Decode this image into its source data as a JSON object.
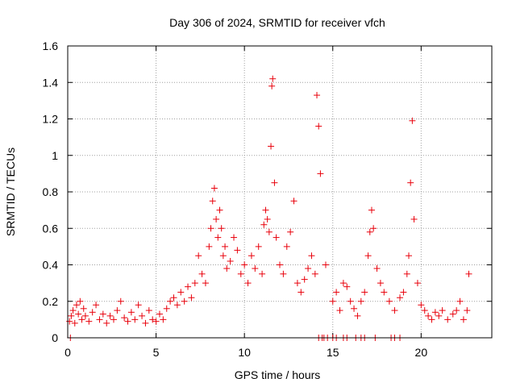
{
  "chart_data": {
    "type": "scatter",
    "title": "Day 306 of 2024, SRMTID for receiver vfch",
    "xlabel": "GPS time / hours",
    "ylabel": "SRMTID / TECUs",
    "xlim": [
      0,
      24
    ],
    "ylim": [
      0,
      1.6
    ],
    "grid": true,
    "x_ticks": [
      0,
      5,
      10,
      15,
      20
    ],
    "y_ticks": [
      0,
      0.2,
      0.4,
      0.6,
      0.8,
      1,
      1.2,
      1.4,
      1.6
    ],
    "x_tick_labels": [
      "0",
      "5",
      "10",
      "15",
      "20"
    ],
    "y_tick_labels": [
      "0",
      "0.2",
      "0.4",
      "0.6",
      "0.8",
      "1",
      "1.2",
      "1.4",
      "1.6"
    ],
    "marker": "+",
    "color": "#e8000b",
    "series": [
      {
        "name": "SRMTID",
        "x": [
          0.1,
          0.2,
          0.3,
          0.4,
          0.5,
          0.6,
          0.7,
          0.8,
          0.9,
          1.0,
          1.2,
          1.4,
          1.6,
          1.8,
          2.0,
          2.2,
          2.4,
          2.6,
          2.8,
          3.0,
          3.2,
          3.4,
          3.6,
          3.8,
          4.0,
          4.2,
          4.4,
          4.6,
          4.8,
          5.0,
          5.2,
          5.4,
          5.6,
          5.8,
          6.0,
          6.2,
          6.4,
          6.6,
          6.8,
          7.0,
          7.2,
          7.4,
          7.6,
          7.8,
          8.0,
          8.1,
          8.2,
          8.3,
          8.4,
          8.5,
          8.6,
          8.7,
          8.8,
          8.9,
          9.0,
          9.2,
          9.4,
          9.6,
          9.8,
          10.0,
          10.2,
          10.4,
          10.6,
          10.8,
          11.0,
          11.1,
          11.2,
          11.3,
          11.4,
          11.5,
          11.55,
          11.6,
          11.7,
          11.8,
          12.0,
          12.2,
          12.4,
          12.6,
          12.8,
          13.0,
          13.2,
          13.4,
          13.6,
          13.8,
          14.0,
          14.1,
          14.2,
          14.3,
          14.6,
          15.0,
          15.2,
          15.4,
          15.6,
          15.8,
          16.0,
          16.2,
          16.4,
          16.6,
          16.8,
          17.0,
          17.1,
          17.2,
          17.3,
          17.5,
          17.7,
          17.9,
          18.2,
          18.5,
          18.8,
          19.0,
          19.2,
          19.3,
          19.4,
          19.5,
          19.6,
          19.8,
          20.0,
          20.2,
          20.4,
          20.6,
          20.8,
          21.0,
          21.2,
          21.5,
          21.8,
          22.0,
          22.2,
          22.4,
          22.6,
          22.7
        ],
        "y": [
          0.09,
          0.12,
          0.15,
          0.08,
          0.18,
          0.13,
          0.2,
          0.1,
          0.16,
          0.12,
          0.09,
          0.14,
          0.18,
          0.1,
          0.13,
          0.08,
          0.12,
          0.1,
          0.15,
          0.2,
          0.11,
          0.09,
          0.14,
          0.1,
          0.18,
          0.12,
          0.08,
          0.15,
          0.1,
          0.09,
          0.13,
          0.1,
          0.16,
          0.2,
          0.22,
          0.18,
          0.25,
          0.2,
          0.28,
          0.22,
          0.3,
          0.45,
          0.35,
          0.3,
          0.5,
          0.6,
          0.75,
          0.82,
          0.65,
          0.55,
          0.7,
          0.6,
          0.45,
          0.5,
          0.38,
          0.42,
          0.55,
          0.48,
          0.35,
          0.4,
          0.3,
          0.45,
          0.38,
          0.5,
          0.35,
          0.62,
          0.7,
          0.65,
          0.58,
          1.05,
          1.38,
          1.42,
          0.85,
          0.55,
          0.4,
          0.35,
          0.5,
          0.58,
          0.75,
          0.3,
          0.25,
          0.32,
          0.38,
          0.45,
          0.35,
          1.33,
          1.16,
          0.9,
          0.4,
          0.2,
          0.25,
          0.15,
          0.3,
          0.28,
          0.2,
          0.16,
          0.12,
          0.2,
          0.25,
          0.45,
          0.58,
          0.7,
          0.6,
          0.38,
          0.3,
          0.25,
          0.2,
          0.15,
          0.22,
          0.25,
          0.35,
          0.45,
          0.85,
          1.19,
          0.65,
          0.3,
          0.18,
          0.15,
          0.12,
          0.1,
          0.14,
          0.12,
          0.15,
          0.1,
          0.13,
          0.15,
          0.2,
          0.1,
          0.15,
          0.35
        ]
      }
    ],
    "zero_markers_x": [
      0.15,
      14.2,
      14.4,
      14.5,
      14.7,
      15.0,
      15.2,
      15.6,
      15.8,
      16.3,
      16.6,
      16.8,
      17.4,
      18.3,
      18.5,
      18.8
    ]
  }
}
